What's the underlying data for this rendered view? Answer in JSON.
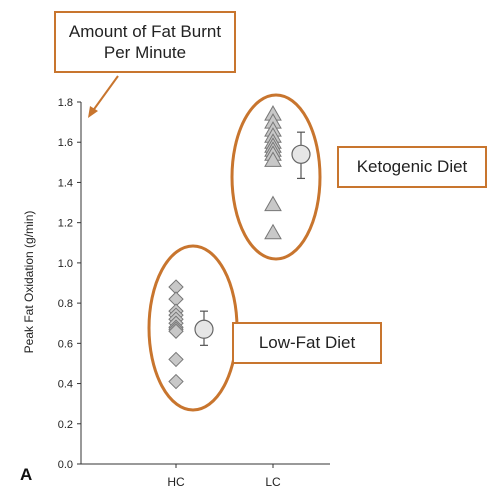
{
  "callouts": {
    "fat_burnt": "Amount of Fat Burnt Per Minute",
    "ketogenic": "Ketogenic Diet",
    "low_fat": "Low-Fat Diet"
  },
  "panel_label": "A",
  "colors": {
    "accent": "#c8752e",
    "marker_fill": "#c8c8c8",
    "marker_stroke": "#777777",
    "axis": "#333333"
  },
  "chart_data": {
    "type": "scatter",
    "ylabel": "Peak Fat Oxidation (g/min)",
    "xlabel": "",
    "categories": [
      "HC",
      "LC"
    ],
    "ylim": [
      0,
      1.8
    ],
    "yticks": [
      0.0,
      0.2,
      0.4,
      0.6,
      0.8,
      1.0,
      1.2,
      1.4,
      1.6,
      1.8
    ],
    "series": [
      {
        "category": "HC",
        "marker": "diamond",
        "values": [
          0.88,
          0.82,
          0.76,
          0.74,
          0.72,
          0.7,
          0.68,
          0.67,
          0.66,
          0.52,
          0.41
        ],
        "mean": 0.67,
        "error": [
          0.59,
          0.76
        ]
      },
      {
        "category": "LC",
        "marker": "triangle",
        "values": [
          1.74,
          1.7,
          1.66,
          1.63,
          1.6,
          1.58,
          1.56,
          1.54,
          1.51,
          1.29,
          1.15
        ],
        "mean": 1.54,
        "error": [
          1.42,
          1.65
        ]
      }
    ]
  }
}
